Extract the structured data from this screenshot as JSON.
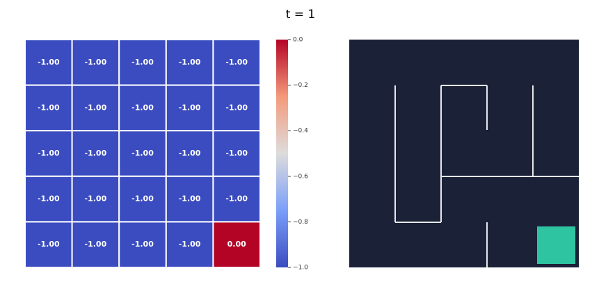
{
  "chart_data": {
    "type": "heatmap",
    "title": "t = 1",
    "z": [
      [
        -1,
        -1,
        -1,
        -1,
        -1
      ],
      [
        -1,
        -1,
        -1,
        -1,
        -1
      ],
      [
        -1,
        -1,
        -1,
        -1,
        -1
      ],
      [
        -1,
        -1,
        -1,
        -1,
        -1
      ],
      [
        -1,
        -1,
        -1,
        -1,
        0
      ]
    ],
    "value_labels": [
      [
        "-1.00",
        "-1.00",
        "-1.00",
        "-1.00",
        "-1.00"
      ],
      [
        "-1.00",
        "-1.00",
        "-1.00",
        "-1.00",
        "-1.00"
      ],
      [
        "-1.00",
        "-1.00",
        "-1.00",
        "-1.00",
        "-1.00"
      ],
      [
        "-1.00",
        "-1.00",
        "-1.00",
        "-1.00",
        "-1.00"
      ],
      [
        "-1.00",
        "-1.00",
        "-1.00",
        "-1.00",
        "0.00"
      ]
    ],
    "colormap": "coolwarm",
    "clim": [
      -1,
      0
    ],
    "cticks": [
      {
        "value": 0,
        "label": "0.0"
      },
      {
        "value": -0.2,
        "label": "−0.2"
      },
      {
        "value": -0.4,
        "label": "−0.4"
      },
      {
        "value": -0.6,
        "label": "−0.6"
      },
      {
        "value": -0.8,
        "label": "−0.8"
      },
      {
        "value": -1,
        "label": "−1.0"
      }
    ]
  }
}
